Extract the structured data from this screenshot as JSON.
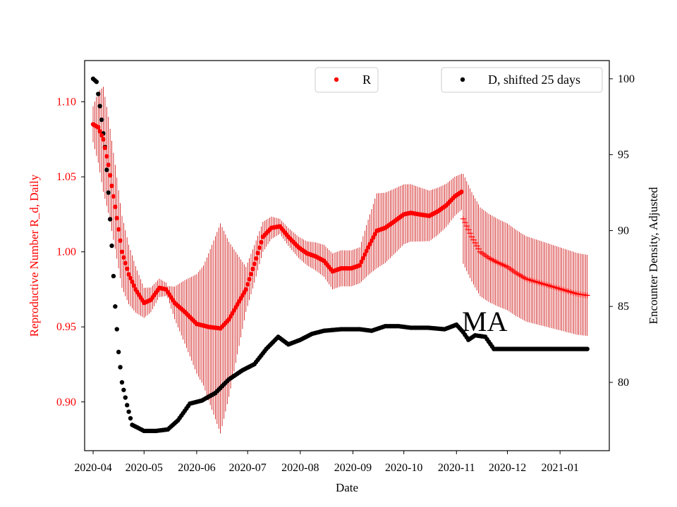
{
  "chart_data": {
    "type": "scatter",
    "xlabel": "Date",
    "ylabel_left": "Reproductive Number R_d, Daily",
    "ylabel_right": "Encounter Density, Adjusted",
    "annotation": "MA",
    "x_range": [
      "2020-03-27",
      "2021-01-30"
    ],
    "ylim_left": [
      0.8675,
      1.1275
    ],
    "ylim_right": [
      75.5,
      101.2
    ],
    "x_ticks": [
      "2020-04",
      "2020-05",
      "2020-06",
      "2020-07",
      "2020-08",
      "2020-09",
      "2020-10",
      "2020-11",
      "2020-12",
      "2021-01"
    ],
    "y_ticks_left": [
      "0.90",
      "0.95",
      "1.00",
      "1.05",
      "1.10"
    ],
    "y_ticks_right": [
      "80",
      "85",
      "90",
      "95",
      "100"
    ],
    "legend": {
      "r": {
        "label": "R",
        "placement": "top-center"
      },
      "d": {
        "label": "D, shifted 25 days",
        "placement": "top-right"
      }
    },
    "colors": {
      "r": "#ff0000",
      "r_error": "#cc0000",
      "d": "#000000",
      "left_axis": "#ff0000",
      "right_axis": "#000000"
    },
    "series": [
      {
        "name": "R",
        "axis": "left",
        "marker": "dot",
        "start_date": "2020-04-01",
        "end_date": "2020-11-04",
        "key_points": [
          [
            "2020-04-01",
            1.085
          ],
          [
            "2020-04-04",
            1.083
          ],
          [
            "2020-04-07",
            1.075
          ],
          [
            "2020-04-10",
            1.058
          ],
          [
            "2020-04-14",
            1.03
          ],
          [
            "2020-04-18",
            1.0
          ],
          [
            "2020-04-22",
            0.985
          ],
          [
            "2020-04-26",
            0.975
          ],
          [
            "2020-05-01",
            0.966
          ],
          [
            "2020-05-05",
            0.968
          ],
          [
            "2020-05-10",
            0.976
          ],
          [
            "2020-05-14",
            0.975
          ],
          [
            "2020-05-19",
            0.966
          ],
          [
            "2020-05-25",
            0.96
          ],
          [
            "2020-06-01",
            0.952
          ],
          [
            "2020-06-08",
            0.95
          ],
          [
            "2020-06-15",
            0.949
          ],
          [
            "2020-06-20",
            0.955
          ],
          [
            "2020-06-25",
            0.965
          ],
          [
            "2020-06-30",
            0.975
          ],
          [
            "2020-07-05",
            0.992
          ],
          [
            "2020-07-10",
            1.01
          ],
          [
            "2020-07-15",
            1.016
          ],
          [
            "2020-07-20",
            1.017
          ],
          [
            "2020-07-25",
            1.01
          ],
          [
            "2020-07-31",
            1.003
          ],
          [
            "2020-08-05",
            0.999
          ],
          [
            "2020-08-10",
            0.997
          ],
          [
            "2020-08-15",
            0.994
          ],
          [
            "2020-08-20",
            0.987
          ],
          [
            "2020-08-25",
            0.989
          ],
          [
            "2020-08-31",
            0.989
          ],
          [
            "2020-09-05",
            0.991
          ],
          [
            "2020-09-10",
            1.003
          ],
          [
            "2020-09-15",
            1.014
          ],
          [
            "2020-09-20",
            1.016
          ],
          [
            "2020-09-25",
            1.02
          ],
          [
            "2020-10-01",
            1.025
          ],
          [
            "2020-10-05",
            1.026
          ],
          [
            "2020-10-10",
            1.025
          ],
          [
            "2020-10-16",
            1.024
          ],
          [
            "2020-10-21",
            1.027
          ],
          [
            "2020-10-26",
            1.031
          ],
          [
            "2020-10-31",
            1.037
          ],
          [
            "2020-11-04",
            1.04
          ]
        ],
        "error_halfwidth": [
          [
            "2020-04-01",
            0.012
          ],
          [
            "2020-04-07",
            0.035
          ],
          [
            "2020-04-20",
            0.022
          ],
          [
            "2020-05-01",
            0.01
          ],
          [
            "2020-05-15",
            0.004
          ],
          [
            "2020-06-05",
            0.04
          ],
          [
            "2020-06-15",
            0.07
          ],
          [
            "2020-06-30",
            0.015
          ],
          [
            "2020-07-10",
            0.01
          ],
          [
            "2020-07-20",
            0.005
          ],
          [
            "2020-08-05",
            0.008
          ],
          [
            "2020-08-20",
            0.012
          ],
          [
            "2020-09-05",
            0.012
          ],
          [
            "2020-09-15",
            0.025
          ],
          [
            "2020-10-01",
            0.02
          ],
          [
            "2020-10-20",
            0.016
          ],
          [
            "2020-11-04",
            0.012
          ]
        ]
      },
      {
        "name": "R",
        "axis": "left",
        "marker": "plus",
        "start_date": "2020-11-05",
        "end_date": "2021-01-17",
        "key_points": [
          [
            "2020-11-05",
            1.022
          ],
          [
            "2020-11-10",
            1.01
          ],
          [
            "2020-11-15",
            1.0
          ],
          [
            "2020-11-20",
            0.996
          ],
          [
            "2020-11-25",
            0.993
          ],
          [
            "2020-12-01",
            0.99
          ],
          [
            "2020-12-06",
            0.986
          ],
          [
            "2020-12-12",
            0.982
          ],
          [
            "2020-12-18",
            0.98
          ],
          [
            "2020-12-24",
            0.978
          ],
          [
            "2020-12-30",
            0.976
          ],
          [
            "2021-01-05",
            0.974
          ],
          [
            "2021-01-11",
            0.972
          ],
          [
            "2021-01-17",
            0.971
          ]
        ],
        "error_halfwidth": [
          [
            "2020-11-05",
            0.03
          ],
          [
            "2021-01-17",
            0.027
          ]
        ]
      },
      {
        "name": "D, shifted 25 days",
        "axis": "right",
        "marker": "dot",
        "start_date": "2020-04-01",
        "end_date": "2021-01-17",
        "key_points": [
          [
            "2020-04-01",
            100.0
          ],
          [
            "2020-04-03",
            99.8
          ],
          [
            "2020-04-05",
            98.2
          ],
          [
            "2020-04-08",
            95.5
          ],
          [
            "2020-04-10",
            92.5
          ],
          [
            "2020-04-12",
            89.0
          ],
          [
            "2020-04-14",
            85.0
          ],
          [
            "2020-04-16",
            82.0
          ],
          [
            "2020-04-18",
            80.0
          ],
          [
            "2020-04-21",
            78.5
          ],
          [
            "2020-04-24",
            77.2
          ],
          [
            "2020-05-01",
            76.8
          ],
          [
            "2020-05-08",
            76.8
          ],
          [
            "2020-05-15",
            76.9
          ],
          [
            "2020-05-21",
            77.5
          ],
          [
            "2020-05-28",
            78.6
          ],
          [
            "2020-06-04",
            78.8
          ],
          [
            "2020-06-12",
            79.3
          ],
          [
            "2020-06-20",
            80.2
          ],
          [
            "2020-06-28",
            80.8
          ],
          [
            "2020-07-05",
            81.2
          ],
          [
            "2020-07-12",
            82.2
          ],
          [
            "2020-07-19",
            83.0
          ],
          [
            "2020-07-25",
            82.5
          ],
          [
            "2020-08-01",
            82.8
          ],
          [
            "2020-08-08",
            83.2
          ],
          [
            "2020-08-15",
            83.4
          ],
          [
            "2020-08-25",
            83.5
          ],
          [
            "2020-09-05",
            83.5
          ],
          [
            "2020-09-12",
            83.4
          ],
          [
            "2020-09-20",
            83.7
          ],
          [
            "2020-09-28",
            83.7
          ],
          [
            "2020-10-05",
            83.6
          ],
          [
            "2020-10-15",
            83.6
          ],
          [
            "2020-10-25",
            83.5
          ],
          [
            "2020-11-01",
            83.8
          ],
          [
            "2020-11-05",
            83.3
          ],
          [
            "2020-11-08",
            82.8
          ],
          [
            "2020-11-12",
            83.1
          ],
          [
            "2020-11-18",
            83.0
          ],
          [
            "2020-11-23",
            82.2
          ],
          [
            "2021-01-17",
            82.2
          ]
        ]
      }
    ]
  }
}
